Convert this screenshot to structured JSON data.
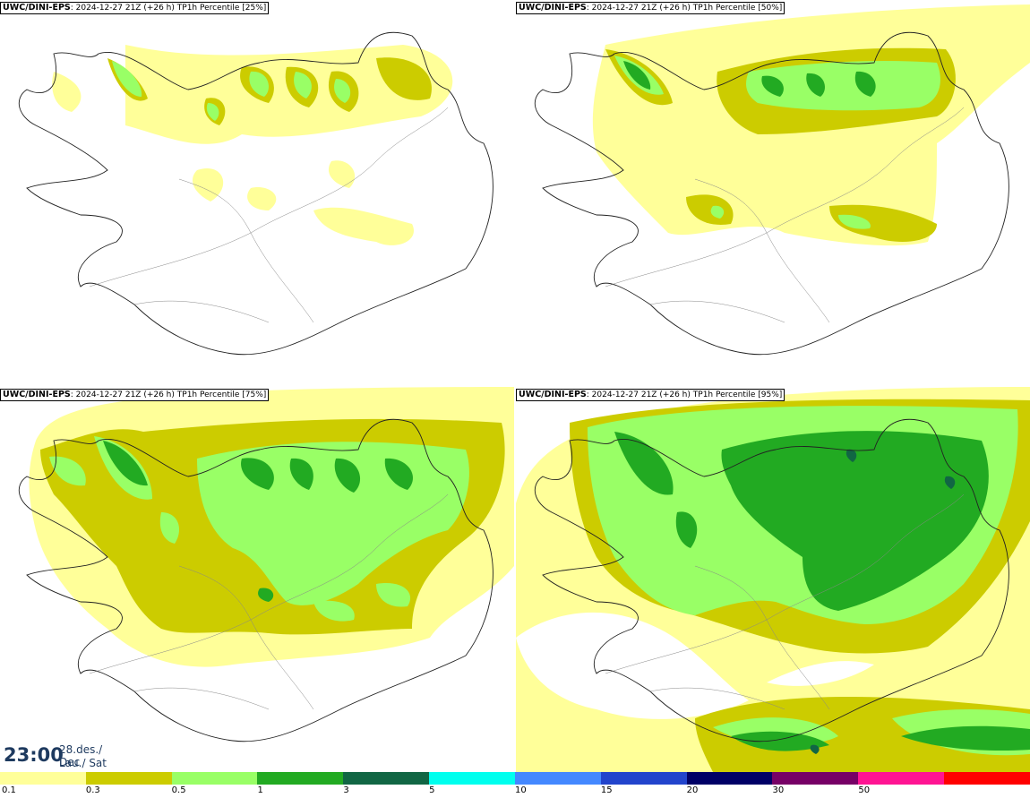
{
  "panels": [
    {
      "source": "UWC/DINI-EPS",
      "run": ": 2024-12-27 21Z (+26 h)",
      "field": "TP1h Percentile [25%]"
    },
    {
      "source": "UWC/DINI-EPS",
      "run": ": 2024-12-27 21Z (+26 h)",
      "field": "TP1h Percentile [50%]"
    },
    {
      "source": "UWC/DINI-EPS",
      "run": ": 2024-12-27 21Z (+26 h)",
      "field": "TP1h Percentile [75%]"
    },
    {
      "source": "UWC/DINI-EPS",
      "run": ": 2024-12-27 21Z (+26 h)",
      "field": "TP1h Percentile [95%]"
    }
  ],
  "valid_time": {
    "time": "23:00",
    "date": "28.des./ Dec",
    "day": "Lau./ Sat"
  },
  "legend": {
    "colors": [
      "#ffff99",
      "#cccc00",
      "#99ff66",
      "#22aa22",
      "#116644",
      "#00ffee",
      "#4488ff",
      "#2244cc",
      "#000066",
      "#770066",
      "#ff1493",
      "#ff0000"
    ],
    "ticks": [
      "0.1",
      "0.3",
      "0.5",
      "1",
      "3",
      "5",
      "10",
      "15",
      "20",
      "30",
      "50"
    ]
  }
}
